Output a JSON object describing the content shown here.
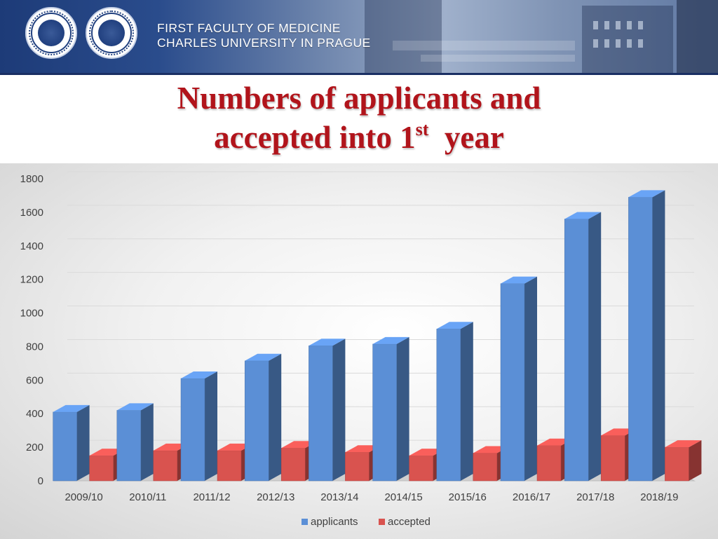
{
  "header": {
    "faculty_line1": "FIRST FACULTY OF MEDICINE",
    "faculty_line2": "CHARLES UNIVERSITY IN PRAGUE"
  },
  "title": {
    "line1": "Numbers of applicants and",
    "line2_pre": "accepted into 1",
    "line2_sup": "st",
    "line2_post": "  year"
  },
  "chart_data": {
    "type": "bar",
    "categories": [
      "2009/10",
      "2010/11",
      "2011/12",
      "2012/13",
      "2013/14",
      "2014/15",
      "2015/16",
      "2016/17",
      "2017/18",
      "2018/19"
    ],
    "series": [
      {
        "name": "applicants",
        "values": [
          410,
          420,
          610,
          715,
          805,
          815,
          905,
          1175,
          1560,
          1690
        ],
        "color": "#5b8fd6"
      },
      {
        "name": "accepted",
        "values": [
          150,
          180,
          180,
          195,
          170,
          150,
          165,
          210,
          270,
          200
        ],
        "color": "#d9534f"
      }
    ],
    "y_ticks": [
      0,
      200,
      400,
      600,
      800,
      1000,
      1200,
      1400,
      1600,
      1800
    ],
    "ylim": [
      0,
      1800
    ],
    "grid": true,
    "legend_position": "bottom",
    "style": "3d-column"
  }
}
